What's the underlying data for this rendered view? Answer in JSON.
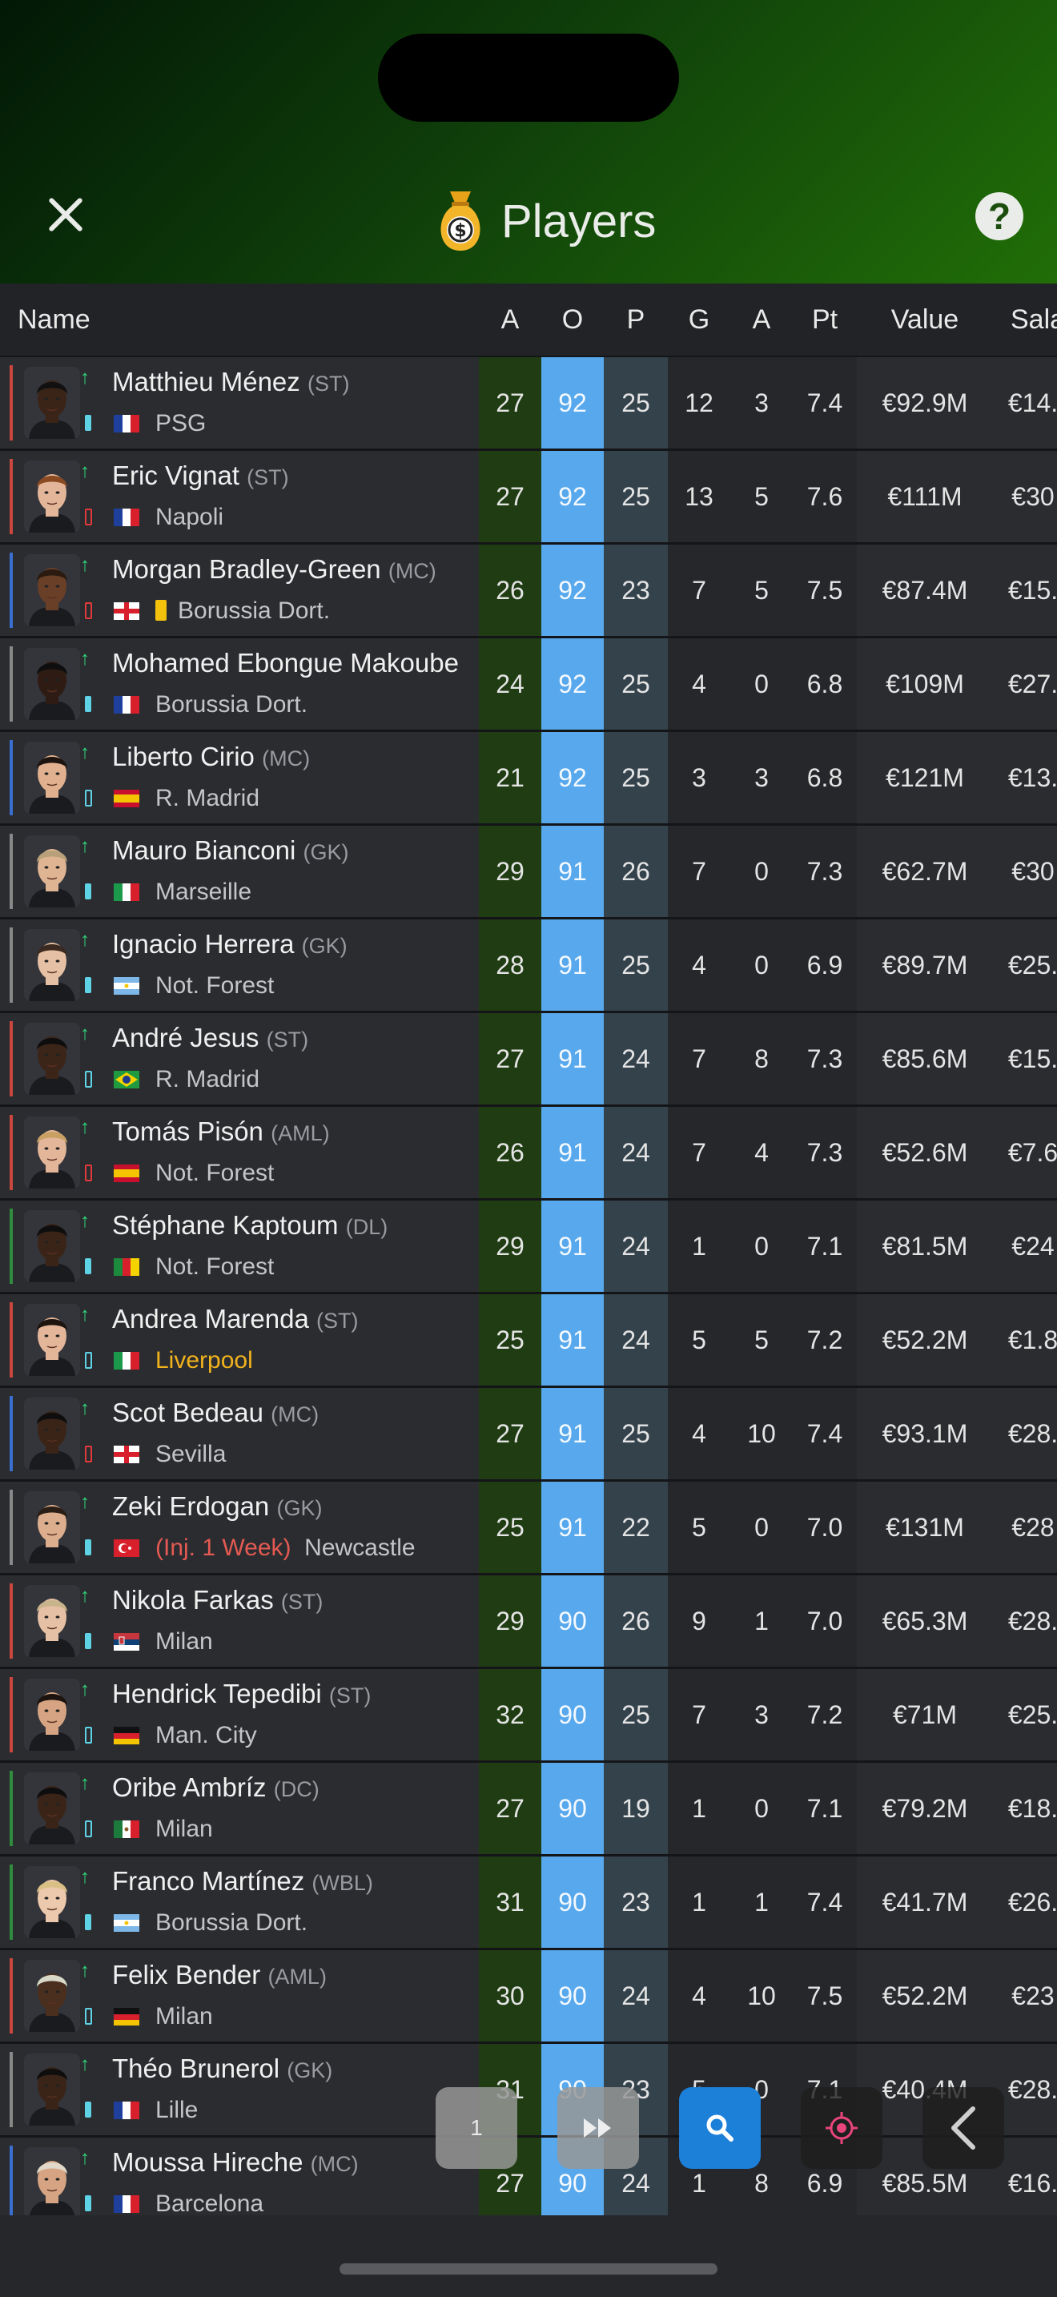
{
  "header": {
    "title": "Players"
  },
  "columns": {
    "name": "Name",
    "age": "A",
    "overall": "O",
    "potential": "P",
    "goals": "G",
    "assists": "A",
    "points": "Pt",
    "value": "Value",
    "salary": "Sala"
  },
  "players": [
    {
      "name": "Matthieu Ménez",
      "pos": "(ST)",
      "club": "PSG",
      "flag": "fr",
      "stripe": "#c9473f",
      "battery": "full",
      "skin": "#3a2418",
      "hair": "#111",
      "age": "27",
      "ovr": "92",
      "pot": "25",
      "g": "12",
      "a": "3",
      "pt": "7.4",
      "value": "€92.9M",
      "salary": "€14."
    },
    {
      "name": "Eric Vignat",
      "pos": "(ST)",
      "club": "Napoli",
      "flag": "fr",
      "stripe": "#c9473f",
      "battery": "low",
      "skin": "#e3b69a",
      "hair": "#8a4a22",
      "age": "27",
      "ovr": "92",
      "pot": "25",
      "g": "13",
      "a": "5",
      "pt": "7.6",
      "value": "€111M",
      "salary": "€30"
    },
    {
      "name": "Morgan Bradley-Green",
      "pos": "(MC)",
      "club": "Borussia Dort.",
      "flag": "en",
      "stripe": "#3a6fd0",
      "battery": "low",
      "skin": "#6a3f28",
      "hair": "#2a1a10",
      "age": "26",
      "ovr": "92",
      "pot": "23",
      "g": "7",
      "a": "5",
      "pt": "7.5",
      "value": "€87.4M",
      "salary": "€15.",
      "yellow": true
    },
    {
      "name": "Mohamed Ebongue Makoube",
      "pos": "",
      "club": "Borussia Dort.",
      "flag": "fr",
      "stripe": "#888",
      "battery": "full",
      "skin": "#2e1c14",
      "hair": "#0e0e0e",
      "age": "24",
      "ovr": "92",
      "pot": "25",
      "g": "4",
      "a": "0",
      "pt": "6.8",
      "value": "€109M",
      "salary": "€27."
    },
    {
      "name": "Liberto Cirio",
      "pos": "(MC)",
      "club": "R. Madrid",
      "flag": "es",
      "stripe": "#3a6fd0",
      "battery": "mid",
      "skin": "#e0b08f",
      "hair": "#1d1410",
      "age": "21",
      "ovr": "92",
      "pot": "25",
      "g": "3",
      "a": "3",
      "pt": "6.8",
      "value": "€121M",
      "salary": "€13."
    },
    {
      "name": "Mauro Bianconi",
      "pos": "(GK)",
      "club": "Marseille",
      "flag": "it",
      "stripe": "#888",
      "battery": "full",
      "skin": "#dfb493",
      "hair": "#b8a07a",
      "age": "29",
      "ovr": "91",
      "pot": "26",
      "g": "7",
      "a": "0",
      "pt": "7.3",
      "value": "€62.7M",
      "salary": "€30"
    },
    {
      "name": "Ignacio Herrera",
      "pos": "(GK)",
      "club": "Not. Forest",
      "flag": "ar",
      "stripe": "#888",
      "battery": "full",
      "skin": "#e6c0a4",
      "hair": "#3b2a1f",
      "age": "28",
      "ovr": "91",
      "pot": "25",
      "g": "4",
      "a": "0",
      "pt": "6.9",
      "value": "€89.7M",
      "salary": "€25."
    },
    {
      "name": "André Jesus",
      "pos": "(ST)",
      "club": "R. Madrid",
      "flag": "br",
      "stripe": "#c9473f",
      "battery": "mid",
      "skin": "#3b2418",
      "hair": "#0e0e0e",
      "age": "27",
      "ovr": "91",
      "pot": "24",
      "g": "7",
      "a": "8",
      "pt": "7.3",
      "value": "€85.6M",
      "salary": "€15."
    },
    {
      "name": "Tomás Pisón",
      "pos": "(AML)",
      "club": "Not. Forest",
      "flag": "es",
      "stripe": "#c9473f",
      "battery": "low",
      "skin": "#e3b69a",
      "hair": "#c9a064",
      "age": "26",
      "ovr": "91",
      "pot": "24",
      "g": "7",
      "a": "4",
      "pt": "7.3",
      "value": "€52.6M",
      "salary": "€7.6"
    },
    {
      "name": "Stéphane Kaptoum",
      "pos": "(DL)",
      "club": "Not. Forest",
      "flag": "cm",
      "stripe": "#2f8c3e",
      "battery": "full",
      "skin": "#3a2418",
      "hair": "#0e0e0e",
      "age": "29",
      "ovr": "91",
      "pot": "24",
      "g": "1",
      "a": "0",
      "pt": "7.1",
      "value": "€81.5M",
      "salary": "€24"
    },
    {
      "name": "Andrea Marenda",
      "pos": "(ST)",
      "club": "Liverpool",
      "flag": "it",
      "stripe": "#c9473f",
      "battery": "mid",
      "skin": "#e3b69a",
      "hair": "#1d1410",
      "age": "25",
      "ovr": "91",
      "pot": "24",
      "g": "5",
      "a": "5",
      "pt": "7.2",
      "value": "€52.2M",
      "salary": "€1.8",
      "clubHighlight": true
    },
    {
      "name": "Scot Bedeau",
      "pos": "(MC)",
      "club": "Sevilla",
      "flag": "en",
      "stripe": "#3a6fd0",
      "battery": "low",
      "skin": "#3a2418",
      "hair": "#0e0e0e",
      "age": "27",
      "ovr": "91",
      "pot": "25",
      "g": "4",
      "a": "10",
      "pt": "7.4",
      "value": "€93.1M",
      "salary": "€28."
    },
    {
      "name": "Zeki Erdogan",
      "pos": "(GK)",
      "club": "Newcastle",
      "flag": "tr",
      "stripe": "#888",
      "battery": "full",
      "skin": "#dcae8e",
      "hair": "#2a1d15",
      "age": "25",
      "ovr": "91",
      "pot": "22",
      "g": "5",
      "a": "0",
      "pt": "7.0",
      "value": "€131M",
      "salary": "€28",
      "injury": "(Inj. 1 Week)"
    },
    {
      "name": "Nikola Farkas",
      "pos": "(ST)",
      "club": "Milan",
      "flag": "rs",
      "stripe": "#c9473f",
      "battery": "full",
      "skin": "#e6c0a4",
      "hair": "#c8b48c",
      "age": "29",
      "ovr": "90",
      "pot": "26",
      "g": "9",
      "a": "1",
      "pt": "7.0",
      "value": "€65.3M",
      "salary": "€28."
    },
    {
      "name": "Hendrick Tepedibi",
      "pos": "(ST)",
      "club": "Man. City",
      "flag": "de",
      "stripe": "#c9473f",
      "battery": "mid",
      "skin": "#d6a482",
      "hair": "#1d1410",
      "age": "32",
      "ovr": "90",
      "pot": "25",
      "g": "7",
      "a": "3",
      "pt": "7.2",
      "value": "€71M",
      "salary": "€25."
    },
    {
      "name": "Oribe Ambríz",
      "pos": "(DC)",
      "club": "Milan",
      "flag": "mx",
      "stripe": "#2f8c3e",
      "battery": "mid",
      "skin": "#3a2418",
      "hair": "#0e0e0e",
      "age": "27",
      "ovr": "90",
      "pot": "19",
      "g": "1",
      "a": "0",
      "pt": "7.1",
      "value": "€79.2M",
      "salary": "€18."
    },
    {
      "name": "Franco Martínez",
      "pos": "(WBL)",
      "club": "Borussia Dort.",
      "flag": "ar",
      "stripe": "#2f8c3e",
      "battery": "full",
      "skin": "#ecc8ac",
      "hair": "#d8c084",
      "age": "31",
      "ovr": "90",
      "pot": "23",
      "g": "1",
      "a": "1",
      "pt": "7.4",
      "value": "€41.7M",
      "salary": "€26."
    },
    {
      "name": "Felix Bender",
      "pos": "(AML)",
      "club": "Milan",
      "flag": "de",
      "stripe": "#c9473f",
      "battery": "mid",
      "skin": "#4a2e1e",
      "hair": "#d8d8c8",
      "age": "30",
      "ovr": "90",
      "pot": "24",
      "g": "4",
      "a": "10",
      "pt": "7.5",
      "value": "€52.2M",
      "salary": "€23"
    },
    {
      "name": "Théo Brunerol",
      "pos": "(GK)",
      "club": "Lille",
      "flag": "fr",
      "stripe": "#888",
      "battery": "full",
      "skin": "#3a2418",
      "hair": "#0e0e0e",
      "age": "31",
      "ovr": "90",
      "pot": "23",
      "g": "5",
      "a": "0",
      "pt": "7.1",
      "value": "€40.4M",
      "salary": "€28."
    },
    {
      "name": "Moussa Hireche",
      "pos": "(MC)",
      "club": "Barcelona",
      "flag": "fr",
      "stripe": "#3a6fd0",
      "battery": "full",
      "skin": "#d6a482",
      "hair": "#e0d8c8",
      "age": "27",
      "ovr": "90",
      "pot": "24",
      "g": "1",
      "a": "8",
      "pt": "6.9",
      "value": "€85.5M",
      "salary": "€16."
    }
  ],
  "toolbar": {
    "page_number": "1"
  },
  "icons": [
    "close-icon",
    "money-bag-icon",
    "help-icon",
    "up-arrow-icon",
    "battery-icon",
    "flag-icon",
    "fast-forward-icon",
    "search-icon",
    "locate-icon",
    "chevron-left-icon"
  ]
}
